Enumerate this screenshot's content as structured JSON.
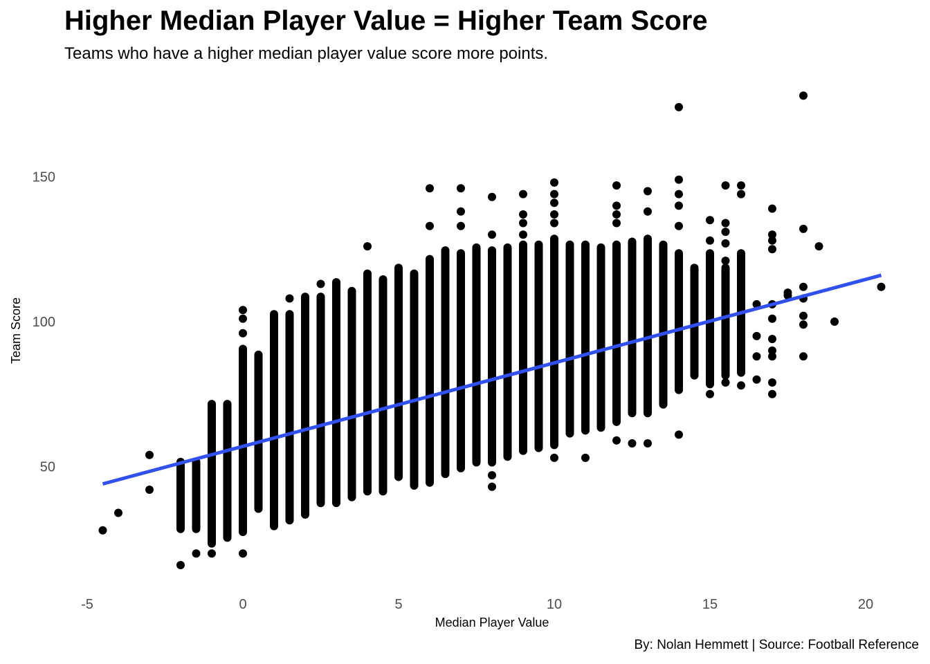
{
  "chart_data": {
    "type": "scatter",
    "title": "Higher Median Player Value = Higher Team Score",
    "subtitle": "Teams who have a higher median player value score more points.",
    "caption": "By: Nolan Hemmett  |  Source: Football Reference",
    "xlabel": "Median Player Value",
    "ylabel": "Team Score",
    "xlim": [
      -5,
      20.5
    ],
    "ylim": [
      15,
      180
    ],
    "x_ticks": [
      -5,
      0,
      5,
      10,
      15,
      20
    ],
    "y_ticks": [
      50,
      100,
      150
    ],
    "grid": false,
    "point_color": "#000000",
    "trend_color": "#3050f0",
    "trend_line": {
      "x": [
        -4.5,
        20.5
      ],
      "y": [
        44,
        116
      ]
    },
    "columns": [
      {
        "x": -2.0,
        "y_min": 27,
        "y_max": 53
      },
      {
        "x": -1.5,
        "y_min": 27,
        "y_max": 53
      },
      {
        "x": -1.0,
        "y_min": 22,
        "y_max": 73
      },
      {
        "x": -0.5,
        "y_min": 24,
        "y_max": 73
      },
      {
        "x": 0.0,
        "y_min": 26,
        "y_max": 92
      },
      {
        "x": 0.5,
        "y_min": 34,
        "y_max": 90
      },
      {
        "x": 1.0,
        "y_min": 28,
        "y_max": 104
      },
      {
        "x": 1.5,
        "y_min": 30,
        "y_max": 104
      },
      {
        "x": 2.0,
        "y_min": 32,
        "y_max": 110
      },
      {
        "x": 2.5,
        "y_min": 36,
        "y_max": 110
      },
      {
        "x": 3.0,
        "y_min": 36,
        "y_max": 115
      },
      {
        "x": 3.5,
        "y_min": 38,
        "y_max": 112
      },
      {
        "x": 4.0,
        "y_min": 40,
        "y_max": 118
      },
      {
        "x": 4.5,
        "y_min": 40,
        "y_max": 116
      },
      {
        "x": 5.0,
        "y_min": 45,
        "y_max": 120
      },
      {
        "x": 5.5,
        "y_min": 42,
        "y_max": 118
      },
      {
        "x": 6.0,
        "y_min": 43,
        "y_max": 123
      },
      {
        "x": 6.5,
        "y_min": 46,
        "y_max": 126
      },
      {
        "x": 7.0,
        "y_min": 48,
        "y_max": 125
      },
      {
        "x": 7.5,
        "y_min": 50,
        "y_max": 127
      },
      {
        "x": 8.0,
        "y_min": 50,
        "y_max": 126
      },
      {
        "x": 8.5,
        "y_min": 52,
        "y_max": 127
      },
      {
        "x": 9.0,
        "y_min": 54,
        "y_max": 128
      },
      {
        "x": 9.5,
        "y_min": 55,
        "y_max": 128
      },
      {
        "x": 10.0,
        "y_min": 56,
        "y_max": 130
      },
      {
        "x": 10.5,
        "y_min": 60,
        "y_max": 128
      },
      {
        "x": 11.0,
        "y_min": 61,
        "y_max": 128
      },
      {
        "x": 11.5,
        "y_min": 62,
        "y_max": 127
      },
      {
        "x": 12.0,
        "y_min": 64,
        "y_max": 128
      },
      {
        "x": 12.5,
        "y_min": 67,
        "y_max": 129
      },
      {
        "x": 13.0,
        "y_min": 67,
        "y_max": 130
      },
      {
        "x": 13.5,
        "y_min": 70,
        "y_max": 128
      },
      {
        "x": 14.0,
        "y_min": 75,
        "y_max": 125
      },
      {
        "x": 14.5,
        "y_min": 80,
        "y_max": 120
      },
      {
        "x": 15.0,
        "y_min": 77,
        "y_max": 125
      },
      {
        "x": 15.5,
        "y_min": 80,
        "y_max": 120
      },
      {
        "x": 16.0,
        "y_min": 81,
        "y_max": 125
      }
    ],
    "points": [
      {
        "x": -4.5,
        "y": 28
      },
      {
        "x": -4.0,
        "y": 34
      },
      {
        "x": -3.0,
        "y": 54
      },
      {
        "x": -3.0,
        "y": 42
      },
      {
        "x": -2.0,
        "y": 16
      },
      {
        "x": -1.5,
        "y": 20
      },
      {
        "x": -1.0,
        "y": 20
      },
      {
        "x": 0.0,
        "y": 20
      },
      {
        "x": 0.0,
        "y": 96
      },
      {
        "x": 0.0,
        "y": 101
      },
      {
        "x": 0.0,
        "y": 104
      },
      {
        "x": 1.5,
        "y": 108
      },
      {
        "x": 2.5,
        "y": 113
      },
      {
        "x": 4.0,
        "y": 126
      },
      {
        "x": 6.0,
        "y": 133
      },
      {
        "x": 6.0,
        "y": 146
      },
      {
        "x": 7.0,
        "y": 146
      },
      {
        "x": 7.0,
        "y": 138
      },
      {
        "x": 7.0,
        "y": 133
      },
      {
        "x": 8.0,
        "y": 143
      },
      {
        "x": 8.0,
        "y": 130
      },
      {
        "x": 8.0,
        "y": 47
      },
      {
        "x": 8.0,
        "y": 43
      },
      {
        "x": 9.0,
        "y": 144
      },
      {
        "x": 9.0,
        "y": 137
      },
      {
        "x": 9.0,
        "y": 134
      },
      {
        "x": 9.0,
        "y": 130
      },
      {
        "x": 10.0,
        "y": 148
      },
      {
        "x": 10.0,
        "y": 144
      },
      {
        "x": 10.0,
        "y": 141
      },
      {
        "x": 10.0,
        "y": 137
      },
      {
        "x": 10.0,
        "y": 134
      },
      {
        "x": 10.0,
        "y": 53
      },
      {
        "x": 11.0,
        "y": 53
      },
      {
        "x": 12.0,
        "y": 147
      },
      {
        "x": 12.0,
        "y": 140
      },
      {
        "x": 12.0,
        "y": 137
      },
      {
        "x": 12.0,
        "y": 134
      },
      {
        "x": 12.0,
        "y": 59
      },
      {
        "x": 12.5,
        "y": 58
      },
      {
        "x": 13.0,
        "y": 145
      },
      {
        "x": 13.0,
        "y": 138
      },
      {
        "x": 13.0,
        "y": 58
      },
      {
        "x": 14.0,
        "y": 174
      },
      {
        "x": 14.0,
        "y": 149
      },
      {
        "x": 14.0,
        "y": 144
      },
      {
        "x": 14.0,
        "y": 140
      },
      {
        "x": 14.0,
        "y": 133
      },
      {
        "x": 14.0,
        "y": 61
      },
      {
        "x": 15.0,
        "y": 135
      },
      {
        "x": 15.0,
        "y": 128
      },
      {
        "x": 15.0,
        "y": 75
      },
      {
        "x": 15.5,
        "y": 147
      },
      {
        "x": 15.5,
        "y": 134
      },
      {
        "x": 15.5,
        "y": 131
      },
      {
        "x": 15.5,
        "y": 127
      },
      {
        "x": 15.5,
        "y": 121
      },
      {
        "x": 15.5,
        "y": 106
      },
      {
        "x": 15.5,
        "y": 97
      },
      {
        "x": 15.5,
        "y": 79
      },
      {
        "x": 16.0,
        "y": 147
      },
      {
        "x": 16.0,
        "y": 144
      },
      {
        "x": 16.0,
        "y": 78
      },
      {
        "x": 16.5,
        "y": 106
      },
      {
        "x": 16.5,
        "y": 95
      },
      {
        "x": 16.5,
        "y": 88
      },
      {
        "x": 16.5,
        "y": 80
      },
      {
        "x": 17.0,
        "y": 139
      },
      {
        "x": 17.0,
        "y": 130
      },
      {
        "x": 17.0,
        "y": 128
      },
      {
        "x": 17.0,
        "y": 125
      },
      {
        "x": 17.0,
        "y": 106
      },
      {
        "x": 17.0,
        "y": 101
      },
      {
        "x": 17.0,
        "y": 94
      },
      {
        "x": 17.0,
        "y": 90
      },
      {
        "x": 17.0,
        "y": 88
      },
      {
        "x": 17.0,
        "y": 79
      },
      {
        "x": 17.0,
        "y": 75
      },
      {
        "x": 17.5,
        "y": 110
      },
      {
        "x": 17.5,
        "y": 109
      },
      {
        "x": 18.0,
        "y": 178
      },
      {
        "x": 18.0,
        "y": 132
      },
      {
        "x": 18.0,
        "y": 112
      },
      {
        "x": 18.0,
        "y": 108
      },
      {
        "x": 18.0,
        "y": 102
      },
      {
        "x": 18.0,
        "y": 99
      },
      {
        "x": 18.0,
        "y": 88
      },
      {
        "x": 18.5,
        "y": 126
      },
      {
        "x": 19.0,
        "y": 100
      },
      {
        "x": 20.5,
        "y": 112
      }
    ]
  }
}
